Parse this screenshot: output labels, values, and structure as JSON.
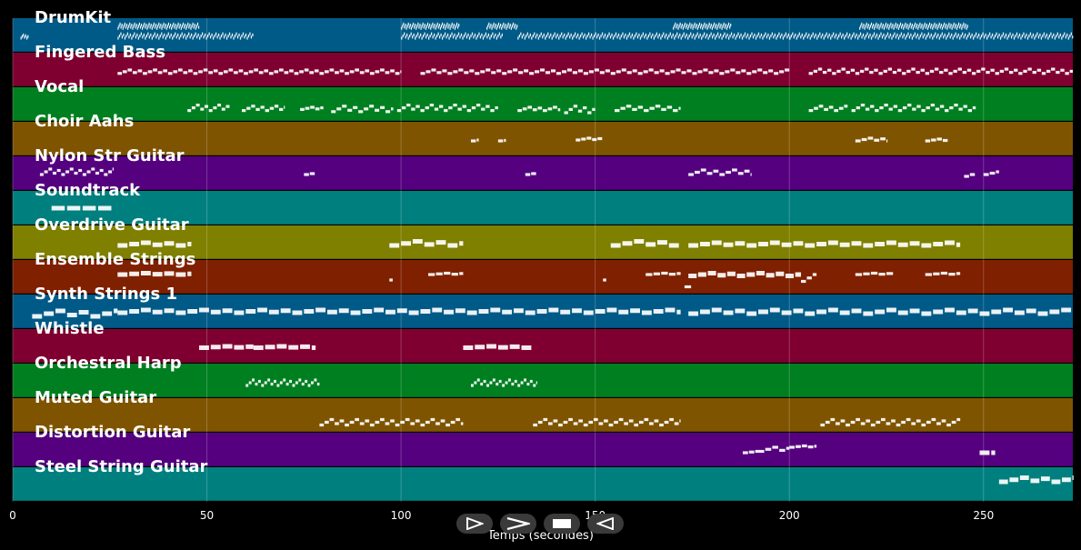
{
  "chart_data": {
    "type": "piano-roll",
    "xlabel": "Temps (secondes)",
    "xlim": [
      0,
      273
    ],
    "xticks": [
      0,
      50,
      100,
      150,
      200,
      250
    ],
    "grid": true,
    "tracks": [
      {
        "name": "DrumKit",
        "color": "#005a87",
        "pitch_range": [
          35,
          60
        ],
        "notes": [
          [
            27,
            62,
            0.35,
            45,
            49
          ],
          [
            100,
            126,
            0.35,
            45,
            49
          ],
          [
            130,
            200,
            0.35,
            45,
            49
          ],
          [
            200,
            273,
            0.35,
            45,
            49
          ],
          [
            27,
            48,
            0.25,
            54,
            58
          ],
          [
            100,
            115,
            0.25,
            54,
            58
          ],
          [
            122,
            130,
            0.25,
            54,
            58
          ],
          [
            170,
            185,
            0.25,
            54,
            58
          ],
          [
            218,
            246,
            0.25,
            54,
            58
          ],
          [
            2,
            4,
            0.3,
            45,
            48
          ]
        ]
      },
      {
        "name": "Fingered Bass",
        "color": "#7f0030",
        "pitch_range": [
          28,
          60
        ],
        "notes": [
          [
            27,
            100,
            1.3,
            40,
            44
          ],
          [
            105,
            200,
            1.4,
            40,
            44
          ],
          [
            205,
            273,
            1.2,
            40,
            45
          ]
        ]
      },
      {
        "name": "Vocal",
        "color": "#007f20",
        "pitch_range": [
          55,
          80
        ],
        "notes": [
          [
            45,
            56,
            1.1,
            62,
            67
          ],
          [
            59,
            70,
            1.2,
            62,
            66
          ],
          [
            74,
            80,
            1.3,
            63,
            65
          ],
          [
            82,
            98,
            1.4,
            61,
            66
          ],
          [
            99,
            125,
            1.2,
            62,
            67
          ],
          [
            130,
            141,
            1.3,
            62,
            65
          ],
          [
            142,
            150,
            1.2,
            60,
            66
          ],
          [
            155,
            172,
            1.5,
            62,
            66
          ],
          [
            205,
            215,
            1.3,
            62,
            66
          ],
          [
            216,
            248,
            1.2,
            62,
            67
          ]
        ]
      },
      {
        "name": "Choir Aahs",
        "color": "#7f5400",
        "pitch_range": [
          50,
          80
        ],
        "notes": [
          [
            118,
            120,
            1.5,
            63,
            65
          ],
          [
            125,
            127,
            1.5,
            63,
            64
          ],
          [
            145,
            152,
            1.4,
            64,
            66
          ],
          [
            217,
            225,
            1.6,
            63,
            66
          ],
          [
            235,
            241,
            1.5,
            63,
            65
          ]
        ]
      },
      {
        "name": "Nylon Str Guitar",
        "color": "#55007f",
        "pitch_range": [
          50,
          80
        ],
        "notes": [
          [
            7,
            26,
            1.1,
            64,
            70
          ],
          [
            75,
            78,
            1.5,
            64,
            66
          ],
          [
            132,
            135,
            1.5,
            64,
            66
          ],
          [
            174,
            190,
            1.6,
            64,
            69
          ],
          [
            245,
            248,
            1.5,
            62,
            66
          ],
          [
            250,
            254,
            1.6,
            64,
            67
          ]
        ]
      },
      {
        "name": "Soundtrack",
        "color": "#007f7f",
        "pitch_range": [
          50,
          80
        ],
        "notes": [
          [
            10,
            26,
            4,
            65,
            65
          ]
        ]
      },
      {
        "name": "Overdrive Guitar",
        "color": "#7f7f00",
        "pitch_range": [
          50,
          70
        ],
        "notes": [
          [
            27,
            46,
            3,
            58,
            60
          ],
          [
            97,
            116,
            3,
            58,
            61
          ],
          [
            154,
            172,
            3,
            58,
            61
          ],
          [
            174,
            244,
            3,
            58,
            60
          ]
        ]
      },
      {
        "name": "Ensemble Strings",
        "color": "#7f2000",
        "pitch_range": [
          50,
          70
        ],
        "notes": [
          [
            27,
            46,
            3,
            62,
            63
          ],
          [
            97,
            98,
            1,
            58,
            62
          ],
          [
            107,
            116,
            2,
            62,
            63
          ],
          [
            152,
            153,
            1,
            58,
            62
          ],
          [
            163,
            172,
            2,
            62,
            63
          ],
          [
            174,
            203,
            2.5,
            61,
            63
          ],
          [
            203,
            207,
            1.5,
            57,
            62
          ],
          [
            173,
            175,
            2,
            53,
            53
          ],
          [
            217,
            227,
            2,
            62,
            63
          ],
          [
            235,
            244,
            2,
            62,
            63
          ]
        ]
      },
      {
        "name": "Synth Strings 1",
        "color": "#005a87",
        "pitch_range": [
          40,
          70
        ],
        "notes": [
          [
            5,
            27,
            3,
            50,
            56
          ],
          [
            27,
            172,
            3,
            54,
            57
          ],
          [
            174,
            273,
            3,
            53,
            57
          ]
        ]
      },
      {
        "name": "Whistle",
        "color": "#7f0030",
        "pitch_range": [
          60,
          80
        ],
        "notes": [
          [
            48,
            62,
            3,
            69,
            70
          ],
          [
            62,
            78,
            3,
            69,
            70
          ],
          [
            116,
            134,
            3,
            69,
            70
          ]
        ]
      },
      {
        "name": "Orchestral Harp",
        "color": "#007f20",
        "pitch_range": [
          50,
          80
        ],
        "notes": [
          [
            60,
            79,
            0.8,
            60,
            66
          ],
          [
            118,
            135,
            0.8,
            60,
            66
          ]
        ]
      },
      {
        "name": "Muted Guitar",
        "color": "#7f5400",
        "pitch_range": [
          50,
          70
        ],
        "notes": [
          [
            79,
            116,
            1.3,
            53,
            57
          ],
          [
            134,
            172,
            1.3,
            53,
            57
          ],
          [
            208,
            244,
            1.3,
            53,
            57
          ]
        ]
      },
      {
        "name": "Distortion Guitar",
        "color": "#55007f",
        "pitch_range": [
          50,
          70
        ],
        "notes": [
          [
            188,
            192,
            1.6,
            58,
            59
          ],
          [
            192,
            200,
            1.8,
            59,
            62
          ],
          [
            200,
            207,
            1.6,
            62,
            63
          ],
          [
            249,
            253,
            3,
            58,
            58
          ]
        ]
      },
      {
        "name": "Steel String Guitar",
        "color": "#007f7f",
        "pitch_range": [
          50,
          70
        ],
        "notes": [
          [
            254,
            273,
            2.7,
            62,
            65
          ]
        ]
      }
    ]
  },
  "controls": {
    "play_icon": "play-icon",
    "forward_icon": "forward-icon",
    "stop_icon": "stop-icon",
    "rewind_icon": "rewind-icon"
  }
}
